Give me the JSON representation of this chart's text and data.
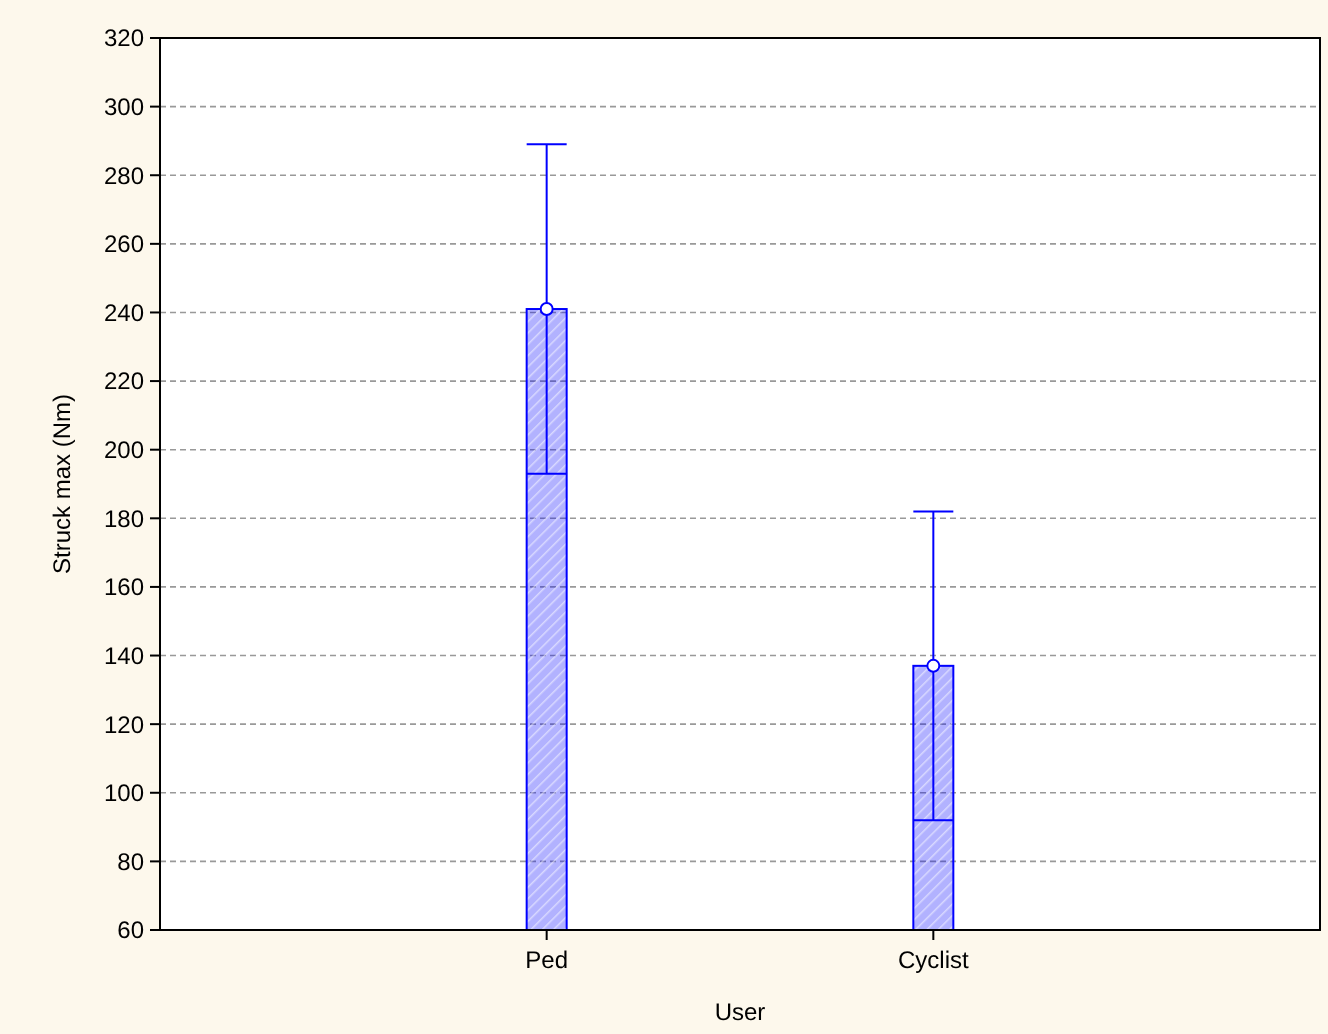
{
  "chart_data": {
    "type": "bar",
    "xlabel": "User",
    "ylabel": "Struck max (Nm)",
    "categories": [
      "Ped",
      "Cyclist"
    ],
    "series": [
      {
        "color": "#0000ff",
        "values": [
          241,
          137
        ],
        "errors": [
          48,
          45
        ]
      },
      {
        "type": "scatter",
        "color": "#0000ff",
        "x": [
          "Ped",
          "Cyclist"
        ],
        "values": [
          241,
          137
        ],
        "marker": "circle"
      }
    ],
    "ylim": [
      60,
      320
    ],
    "yticks": [
      60,
      80,
      100,
      120,
      140,
      160,
      180,
      200,
      220,
      240,
      260,
      280,
      300,
      320
    ],
    "grid": "y"
  }
}
